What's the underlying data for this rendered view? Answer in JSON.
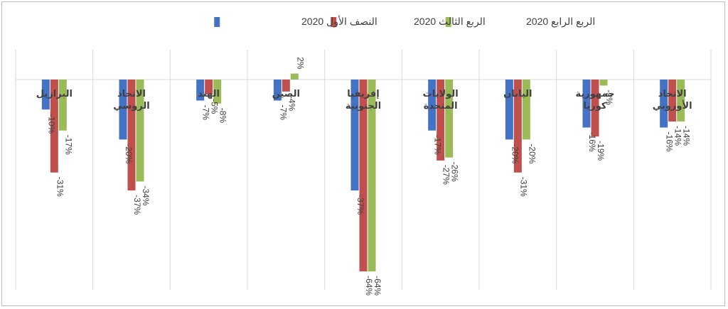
{
  "chart_data": {
    "type": "bar",
    "categories": [
      "البرازيل",
      "الاتحاد الروسي",
      "الهند",
      "الصين",
      "إفريقيا الجنوبية",
      "الولايات المتحدة",
      "اليابان",
      "جمهورية كوريا",
      "الاتحاد الأوروبي"
    ],
    "series": [
      {
        "name": "النصف الأول 2020",
        "values": [
          -10,
          -20,
          -7,
          -7,
          -37,
          -17,
          -20,
          -16,
          -16
        ]
      },
      {
        "name": "الربع الثالث 2020",
        "values": [
          -31,
          -37,
          -5,
          -4,
          -64,
          -27,
          -31,
          -19,
          -14
        ]
      },
      {
        "name": "الربع الرابع 2020",
        "values": [
          -17,
          -34,
          -8,
          2,
          -64,
          -26,
          -20,
          -2,
          -14
        ]
      }
    ],
    "value_labels": [
      [
        "-10%",
        "-20%",
        "-7%",
        "-7%",
        "-37%",
        "-17%",
        "-20%",
        "-16%",
        "-16%"
      ],
      [
        "-31%",
        "-37%",
        "-5%",
        "-4%",
        "-64%",
        "-27%",
        "-31%",
        "-19%",
        "-14%"
      ],
      [
        "-17%",
        "-34%",
        "-8%",
        "2%",
        "-64%",
        "-26%",
        "-20%",
        "-2%",
        "-14%"
      ]
    ],
    "colors": [
      "#4472c4",
      "#c0504d",
      "#9bbb59"
    ],
    "ylim": [
      -64,
      4
    ],
    "grid": "vertical category separators",
    "legend_position": "top",
    "title": "",
    "xlabel": "",
    "ylabel": ""
  }
}
